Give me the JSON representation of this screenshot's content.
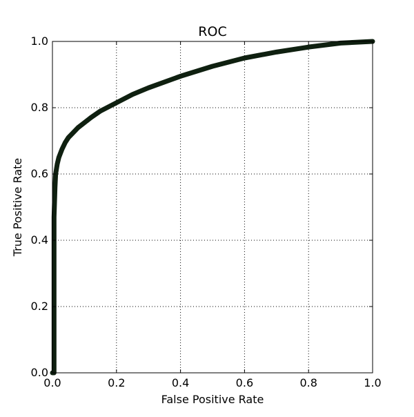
{
  "chart_data": {
    "type": "line",
    "title": "ROC",
    "xlabel": "False Positive Rate",
    "ylabel": "True Positive Rate",
    "xlim": [
      0.0,
      1.0
    ],
    "ylim": [
      0.0,
      1.0
    ],
    "x_ticks": [
      "0.0",
      "0.2",
      "0.4",
      "0.6",
      "0.8",
      "1.0"
    ],
    "y_ticks": [
      "0.0",
      "0.2",
      "0.4",
      "0.6",
      "0.8",
      "1.0"
    ],
    "grid": true,
    "series": [
      {
        "color": "#0f2010",
        "x": [
          0.0,
          0.005,
          0.005,
          0.008,
          0.01,
          0.015,
          0.02,
          0.03,
          0.04,
          0.05,
          0.06,
          0.08,
          0.1,
          0.12,
          0.15,
          0.2,
          0.25,
          0.3,
          0.4,
          0.5,
          0.6,
          0.7,
          0.8,
          0.9,
          1.0
        ],
        "y": [
          0.0,
          0.0,
          0.47,
          0.56,
          0.6,
          0.63,
          0.65,
          0.675,
          0.695,
          0.71,
          0.72,
          0.74,
          0.755,
          0.77,
          0.79,
          0.815,
          0.84,
          0.86,
          0.895,
          0.925,
          0.95,
          0.968,
          0.983,
          0.995,
          1.0
        ]
      }
    ]
  }
}
